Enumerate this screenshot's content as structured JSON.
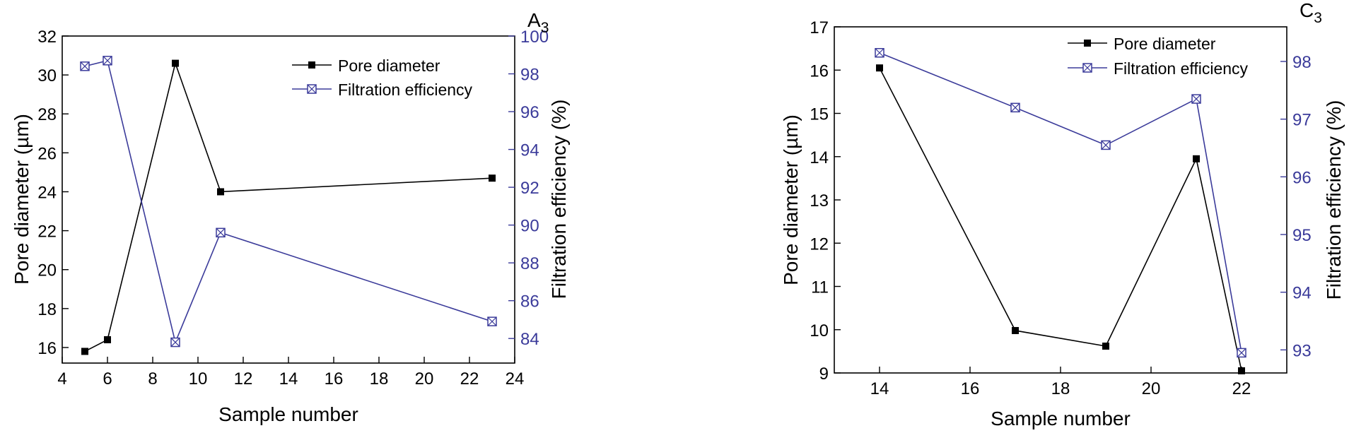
{
  "colors": {
    "axis": "#000000",
    "pore": "#000000",
    "filtration": "#3b3b9a"
  },
  "chart_data": [
    {
      "type": "line",
      "panel_label": "A",
      "panel_label_sub": "3",
      "xlabel": "Sample number",
      "ylabel": "Pore diameter (µm)",
      "y2label": "Filtration efficiency (%)",
      "xlim": [
        4,
        24
      ],
      "ylim": [
        15.2,
        32
      ],
      "y2lim": [
        82.7,
        100
      ],
      "x_ticks": [
        4,
        6,
        8,
        10,
        12,
        14,
        16,
        18,
        20,
        22,
        24
      ],
      "y_ticks": [
        16,
        18,
        20,
        22,
        24,
        26,
        28,
        30,
        32
      ],
      "y2_ticks": [
        84,
        86,
        88,
        90,
        92,
        94,
        96,
        98,
        100
      ],
      "grid": false,
      "legend_position": "top-right",
      "series": [
        {
          "name": "Pore diameter",
          "axis": "left",
          "marker": "square",
          "x": [
            5,
            6,
            9,
            11,
            23
          ],
          "y": [
            15.8,
            16.4,
            30.6,
            24.0,
            24.7
          ]
        },
        {
          "name": "Filtration efficiency",
          "axis": "right",
          "marker": "crossed-square",
          "x": [
            5,
            6,
            9,
            11,
            23
          ],
          "y": [
            98.4,
            98.7,
            83.8,
            89.6,
            84.9
          ]
        }
      ]
    },
    {
      "type": "line",
      "panel_label": "C",
      "panel_label_sub": "3",
      "xlabel": "Sample number",
      "ylabel": "Pore diameter (µm)",
      "y2label": "Filtration efficiency (%)",
      "xlim": [
        13,
        23
      ],
      "ylim": [
        9,
        17
      ],
      "y2lim": [
        92.6,
        98.6
      ],
      "x_ticks": [
        14,
        16,
        18,
        20,
        22
      ],
      "y_ticks": [
        9,
        10,
        11,
        12,
        13,
        14,
        15,
        16,
        17
      ],
      "y2_ticks": [
        93,
        94,
        95,
        96,
        97,
        98
      ],
      "grid": false,
      "legend_position": "top-right",
      "series": [
        {
          "name": "Pore diameter",
          "axis": "left",
          "marker": "square",
          "x": [
            14,
            17,
            19,
            21,
            22
          ],
          "y": [
            16.05,
            9.98,
            9.62,
            13.95,
            9.05
          ]
        },
        {
          "name": "Filtration efficiency",
          "axis": "right",
          "marker": "crossed-square",
          "x": [
            14,
            17,
            19,
            21,
            22
          ],
          "y": [
            98.15,
            97.2,
            96.55,
            97.35,
            92.95
          ]
        }
      ]
    }
  ]
}
